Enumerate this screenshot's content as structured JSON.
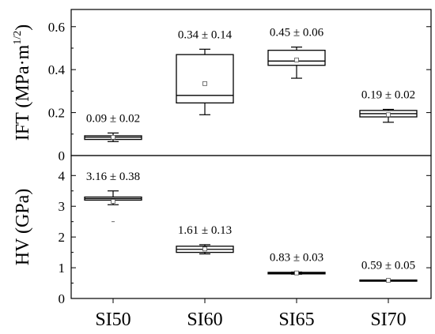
{
  "chart_data": [
    {
      "type": "box",
      "panel": "top",
      "ylabel": "IFT (MPa·m",
      "ylabel_exponent": "1/2",
      "ylabel_close": ")",
      "ylim": [
        0,
        0.68
      ],
      "yticks": [
        0,
        0.2,
        0.4,
        0.6
      ],
      "ytick_labels": [
        "0",
        "0.2",
        "0.4",
        "0.6"
      ],
      "categories": [
        "SI50",
        "SI60",
        "SI65",
        "SI70"
      ],
      "boxes": [
        {
          "category": "SI50",
          "q1": 0.075,
          "median": 0.085,
          "q3": 0.092,
          "whisker_low": 0.065,
          "whisker_high": 0.105,
          "mean": 0.085,
          "label": "0.09 ± 0.02"
        },
        {
          "category": "SI60",
          "q1": 0.245,
          "median": 0.28,
          "q3": 0.47,
          "whisker_low": 0.19,
          "whisker_high": 0.495,
          "mean": 0.335,
          "label": "0.34 ± 0.14"
        },
        {
          "category": "SI65",
          "q1": 0.42,
          "median": 0.44,
          "q3": 0.49,
          "whisker_low": 0.36,
          "whisker_high": 0.505,
          "mean": 0.445,
          "label": "0.45 ± 0.06"
        },
        {
          "category": "SI70",
          "q1": 0.18,
          "median": 0.195,
          "q3": 0.21,
          "whisker_low": 0.155,
          "whisker_high": 0.215,
          "mean": 0.19,
          "label": "0.19 ± 0.02"
        }
      ]
    },
    {
      "type": "box",
      "panel": "bottom",
      "ylabel": "HV (GPa)",
      "ylim": [
        0,
        4.65
      ],
      "yticks": [
        0,
        1,
        2,
        3,
        4
      ],
      "ytick_labels": [
        "0",
        "1",
        "2",
        "3",
        "4"
      ],
      "categories": [
        "SI50",
        "SI60",
        "SI65",
        "SI70"
      ],
      "boxes": [
        {
          "category": "SI50",
          "q1": 3.2,
          "median": 3.25,
          "q3": 3.3,
          "whisker_low": 3.05,
          "whisker_high": 3.5,
          "mean": 3.16,
          "outliers": [
            2.5
          ],
          "label": "3.16 ± 0.38"
        },
        {
          "category": "SI60",
          "q1": 1.5,
          "median": 1.6,
          "q3": 1.7,
          "whisker_low": 1.45,
          "whisker_high": 1.75,
          "mean": 1.61,
          "label": "1.61 ± 0.13"
        },
        {
          "category": "SI65",
          "q1": 0.8,
          "median": 0.82,
          "q3": 0.85,
          "whisker_low": 0.79,
          "whisker_high": 0.86,
          "mean": 0.83,
          "label": "0.83 ± 0.03"
        },
        {
          "category": "SI70",
          "q1": 0.58,
          "median": 0.59,
          "q3": 0.6,
          "whisker_low": 0.58,
          "whisker_high": 0.6,
          "mean": 0.59,
          "label": "0.59 ± 0.05"
        }
      ]
    }
  ]
}
